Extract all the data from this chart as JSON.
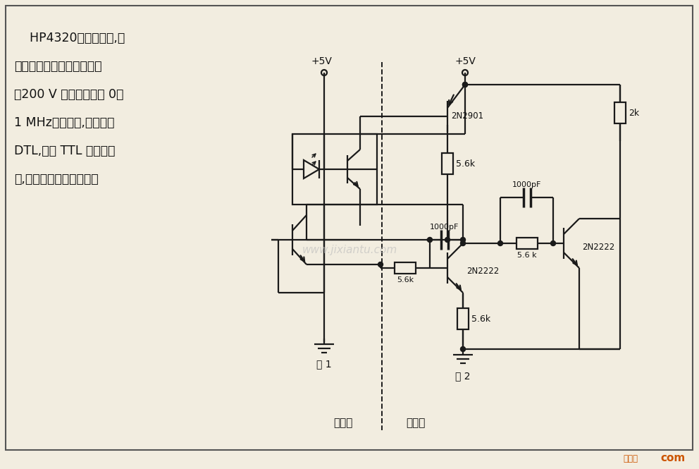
{
  "bg_color": "#f2ede0",
  "line_color": "#1a1a1a",
  "text_color": "#111111",
  "title_lines": [
    "    HP4320光电隔离器,可",
    "在飞船用的系统之间隔离高",
    "达200 V 的地电位。在 0～",
    "1 MHz的带宽内,不管对于",
    "DTL,还是 TTL 驱动的电",
    "路,这种电路都是有效的。"
  ],
  "label_fazheji": "发射机",
  "label_jieshouji": "接收机",
  "label_di1": "地 1",
  "label_di2": "地 2",
  "label_5v_left": "+5V",
  "label_5v_right": "+5V",
  "label_2n2901": "2N2901",
  "label_2n2222_q2": "2N2222",
  "label_2n2222_q3": "2N2222",
  "label_r1": "5.6k",
  "label_r2": "5.6k",
  "label_r3": "5.6k",
  "label_r4": "5.6 k",
  "label_r5": "2k",
  "label_c1": "1000pF",
  "label_c2": "1000pF",
  "watermark": "www.jixiantu.com",
  "footer_text": "接线图",
  "footer_com": "com",
  "dot_color": "#1a1a1a"
}
